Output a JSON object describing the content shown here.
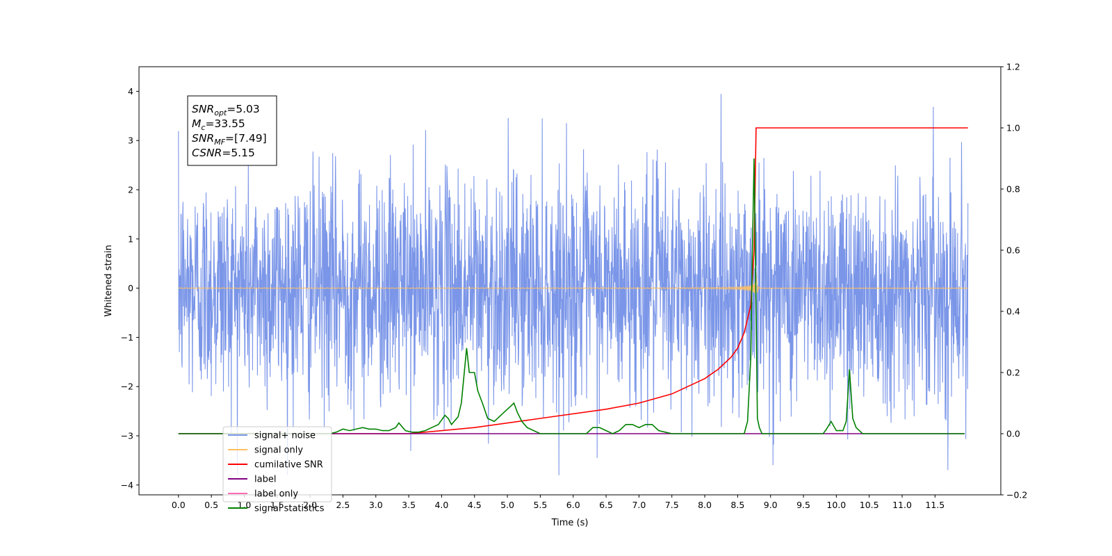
{
  "chart_data": {
    "type": "line",
    "xlabel": "Time (s)",
    "ylabel": "Whitened strain",
    "xlim": [
      -0.6,
      12.5
    ],
    "ylim": [
      -4.2,
      4.5
    ],
    "y2lim": [
      -0.2,
      1.2
    ],
    "x_ticks": [
      0.0,
      0.5,
      1.0,
      1.5,
      2.0,
      2.5,
      3.0,
      3.5,
      4.0,
      4.5,
      5.0,
      5.5,
      6.0,
      6.5,
      7.0,
      7.5,
      8.0,
      8.5,
      9.0,
      9.5,
      10.0,
      10.5,
      11.0,
      11.5
    ],
    "x_tick_labels": [
      "0.0",
      "0.5",
      "1.0",
      "1.5",
      "2.0",
      "2.5",
      "3.0",
      "3.5",
      "4.0",
      "4.5",
      "5.0",
      "5.5",
      "6.0",
      "6.5",
      "7.0",
      "7.5",
      "8.0",
      "8.5",
      "9.0",
      "9.5",
      "10.0",
      "10.5",
      "11.0",
      "11.5"
    ],
    "y_ticks": [
      -4,
      -3,
      -2,
      -1,
      0,
      1,
      2,
      3,
      4
    ],
    "y_tick_labels": [
      "−4",
      "−3",
      "−2",
      "−1",
      "0",
      "1",
      "2",
      "3",
      "4"
    ],
    "y2_ticks": [
      -0.2,
      0.0,
      0.2,
      0.4,
      0.6,
      0.8,
      1.0,
      1.2
    ],
    "y2_tick_labels": [
      "−0.2",
      "0.0",
      "0.2",
      "0.4",
      "0.6",
      "0.8",
      "1.0",
      "1.2"
    ],
    "grid": false,
    "legend_position": "lower-left",
    "annotation_box": {
      "lines": [
        {
          "sym": "SNR",
          "sub": "opt",
          "rest": "=5.03"
        },
        {
          "sym": "M",
          "sub": "c",
          "rest": "=33.55"
        },
        {
          "sym": "SNR",
          "sub": "MF",
          "rest": "=[7.49]"
        },
        {
          "sym": "CSNR",
          "sub": "",
          "rest": "=5.15"
        }
      ]
    },
    "series": [
      {
        "name": "signal+ noise",
        "color": "#7b96e8",
        "axis": "left",
        "kind": "noise",
        "x_range": [
          0.0,
          12.0
        ],
        "amplitude_range": [
          -3.8,
          4.1
        ]
      },
      {
        "name": "signal only",
        "color": "#ffbf60",
        "axis": "left",
        "kind": "chirp",
        "x_range": [
          0.0,
          12.0
        ],
        "merger_time": 8.78
      },
      {
        "name": "cumilative SNR",
        "color": "#ff0000",
        "axis": "right",
        "x": [
          0.0,
          3.5,
          4.5,
          5.5,
          6.5,
          7.0,
          7.5,
          8.0,
          8.2,
          8.4,
          8.5,
          8.6,
          8.7,
          8.75,
          8.78,
          9.5,
          12.0
        ],
        "values": [
          0.0,
          0.0,
          0.02,
          0.05,
          0.08,
          0.1,
          0.13,
          0.18,
          0.21,
          0.25,
          0.28,
          0.33,
          0.42,
          0.6,
          1.0,
          1.0,
          1.0
        ]
      },
      {
        "name": "label",
        "color": "#800080",
        "axis": "right",
        "x": [
          0.0,
          11.95
        ],
        "values": [
          0.0,
          0.0
        ]
      },
      {
        "name": "label only",
        "color": "#ff69b4",
        "axis": "right",
        "x": [],
        "values": []
      },
      {
        "name": "signal statistics",
        "color": "#008000",
        "axis": "right",
        "x": [
          0.0,
          2.3,
          2.4,
          2.5,
          2.6,
          2.7,
          2.8,
          2.9,
          3.0,
          3.1,
          3.2,
          3.3,
          3.35,
          3.45,
          3.55,
          3.65,
          3.75,
          3.85,
          3.95,
          4.05,
          4.1,
          4.15,
          4.25,
          4.3,
          4.38,
          4.42,
          4.5,
          4.55,
          4.62,
          4.7,
          4.8,
          4.9,
          4.95,
          5.05,
          5.1,
          5.15,
          5.22,
          5.3,
          5.4,
          5.5,
          5.6,
          5.8,
          6.0,
          6.2,
          6.3,
          6.4,
          6.5,
          6.6,
          6.7,
          6.8,
          6.9,
          7.0,
          7.1,
          7.2,
          7.3,
          7.4,
          7.5,
          8.6,
          8.65,
          8.7,
          8.72,
          8.75,
          8.78,
          8.8,
          8.83,
          8.87,
          9.8,
          9.85,
          9.92,
          10.0,
          10.1,
          10.15,
          10.2,
          10.25,
          10.3,
          10.4,
          11.95
        ],
        "values": [
          0.0,
          0.0,
          0.005,
          0.015,
          0.01,
          0.015,
          0.02,
          0.015,
          0.015,
          0.01,
          0.01,
          0.02,
          0.035,
          0.01,
          0.005,
          0.005,
          0.01,
          0.02,
          0.03,
          0.06,
          0.05,
          0.03,
          0.055,
          0.1,
          0.28,
          0.2,
          0.2,
          0.14,
          0.1,
          0.05,
          0.04,
          0.06,
          0.07,
          0.09,
          0.1,
          0.07,
          0.04,
          0.02,
          0.01,
          0.0,
          0.0,
          0.0,
          0.0,
          0.0,
          0.02,
          0.02,
          0.01,
          0.0,
          0.01,
          0.03,
          0.03,
          0.02,
          0.03,
          0.03,
          0.01,
          0.005,
          0.0,
          0.0,
          0.04,
          0.25,
          0.55,
          0.9,
          0.4,
          0.05,
          0.02,
          0.0,
          0.0,
          0.015,
          0.04,
          0.01,
          0.01,
          0.04,
          0.21,
          0.05,
          0.02,
          0.0,
          0.0
        ]
      }
    ]
  }
}
